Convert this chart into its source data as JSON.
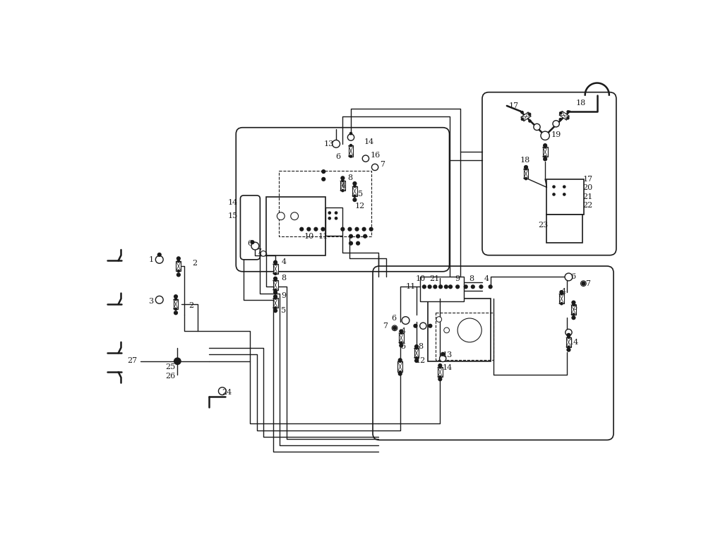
{
  "bg_color": "#ffffff",
  "line_color": "#1a1a1a",
  "fig_width": 10.0,
  "fig_height": 7.68,
  "dpi": 100
}
